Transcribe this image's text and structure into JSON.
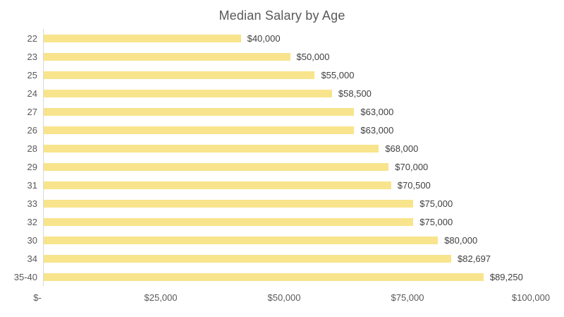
{
  "chart_data": {
    "type": "bar",
    "orientation": "horizontal",
    "title": "Median Salary by Age",
    "categories": [
      "22",
      "23",
      "25",
      "24",
      "27",
      "26",
      "28",
      "29",
      "31",
      "33",
      "32",
      "30",
      "34",
      "35-40"
    ],
    "values": [
      40000,
      50000,
      55000,
      58500,
      63000,
      63000,
      68000,
      70000,
      70500,
      75000,
      75000,
      80000,
      82697,
      89250
    ],
    "value_labels": [
      "$40,000",
      "$50,000",
      "$55,000",
      "$58,500",
      "$63,000",
      "$63,000",
      "$68,000",
      "$70,000",
      "$70,500",
      "$75,000",
      "$75,000",
      "$80,000",
      "$82,697",
      "$89,250"
    ],
    "xlabel": "",
    "ylabel": "",
    "xlim": [
      0,
      100000
    ],
    "x_ticks": [
      {
        "value": 0,
        "label": "$-"
      },
      {
        "value": 25000,
        "label": "$25,000"
      },
      {
        "value": 50000,
        "label": "$50,000"
      },
      {
        "value": 75000,
        "label": "$75,000"
      },
      {
        "value": 100000,
        "label": "$100,000"
      }
    ],
    "grid": false,
    "legend": false,
    "data_labels": true,
    "colors": {
      "bar_fill": "#f8e48c",
      "axis_line": "#d9d9d9",
      "title_text": "#595959",
      "tick_text": "#595959",
      "value_text": "#404040",
      "background": "#ffffff"
    }
  }
}
